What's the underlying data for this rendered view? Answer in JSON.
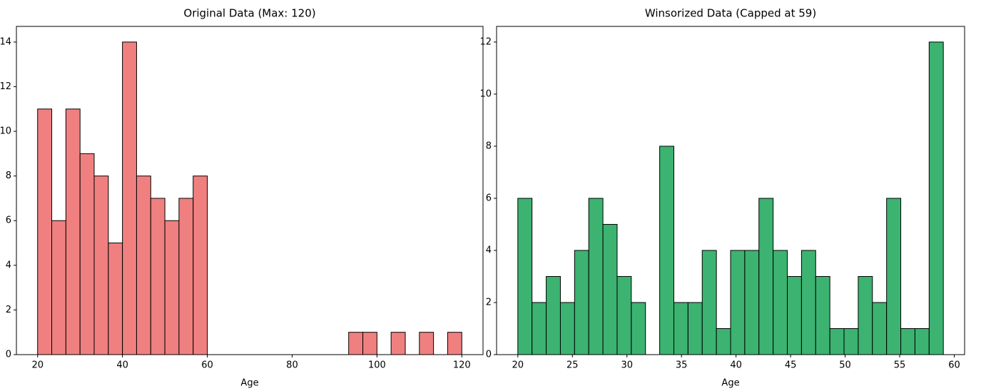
{
  "chart_data": [
    {
      "type": "histogram",
      "title": "Original Data (Max: 120)",
      "xlabel": "Age",
      "bins": [
        20,
        23.33,
        26.67,
        30,
        33.33,
        36.67,
        40,
        43.33,
        46.67,
        50,
        53.33,
        56.67,
        60,
        63.33,
        66.67,
        70,
        73.33,
        76.67,
        80,
        83.33,
        86.67,
        90,
        93.33,
        96.67,
        100,
        103.33,
        106.67,
        110,
        113.33,
        116.67,
        120
      ],
      "counts": [
        11,
        6,
        11,
        9,
        8,
        5,
        14,
        8,
        7,
        6,
        7,
        8,
        0,
        0,
        0,
        0,
        0,
        0,
        0,
        0,
        0,
        0,
        1,
        1,
        0,
        1,
        0,
        1,
        0,
        1
      ],
      "color": "#f08080",
      "edgecolor": "#000000",
      "xlim": [
        15,
        125
      ],
      "ylim": [
        0,
        14.7
      ],
      "xticks": [
        20,
        40,
        60,
        80,
        100,
        120
      ],
      "yticks": [
        0,
        2,
        4,
        6,
        8,
        10,
        12,
        14
      ]
    },
    {
      "type": "histogram",
      "title": "Winsorized Data (Capped at 59)",
      "xlabel": "Age",
      "bins": [
        20,
        21.3,
        22.6,
        23.9,
        25.2,
        26.5,
        27.8,
        29.1,
        30.4,
        31.7,
        33,
        34.3,
        35.6,
        36.9,
        38.2,
        39.5,
        40.8,
        42.1,
        43.4,
        44.7,
        46,
        47.3,
        48.6,
        49.9,
        51.2,
        52.5,
        53.8,
        55.1,
        56.4,
        57.7,
        59
      ],
      "counts": [
        6,
        2,
        3,
        2,
        4,
        6,
        5,
        3,
        2,
        0,
        8,
        2,
        2,
        4,
        1,
        4,
        4,
        6,
        4,
        3,
        4,
        3,
        1,
        1,
        3,
        2,
        6,
        1,
        1,
        12
      ],
      "color": "#3cb371",
      "edgecolor": "#000000",
      "xlim": [
        18.05,
        60.95
      ],
      "ylim": [
        0,
        12.6
      ],
      "xticks": [
        20,
        25,
        30,
        35,
        40,
        45,
        50,
        55,
        60
      ],
      "yticks": [
        0,
        2,
        4,
        6,
        8,
        10,
        12
      ]
    }
  ]
}
